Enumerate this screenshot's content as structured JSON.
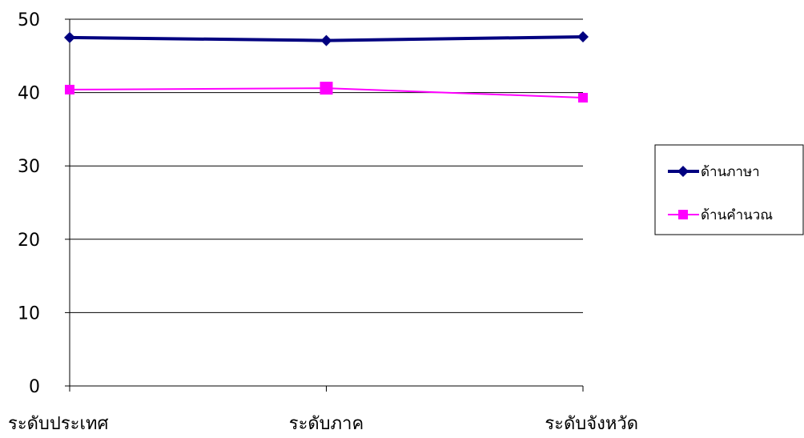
{
  "chart_data": {
    "type": "line",
    "categories": [
      "ระดับประเทศ",
      "ระดับภาค",
      "ระดับจังหวัด"
    ],
    "series": [
      {
        "name": "ด้านภาษา",
        "values": [
          47.5,
          47.1,
          47.6
        ],
        "color": "#000080",
        "marker": "diamond"
      },
      {
        "name": "ด้านคำนวณ",
        "values": [
          40.4,
          40.6,
          39.3
        ],
        "color": "#ff00ff",
        "marker": "square"
      }
    ],
    "ylim": [
      0,
      50
    ],
    "yticks": [
      0,
      10,
      20,
      30,
      40,
      50
    ],
    "grid": true,
    "legend": "right"
  }
}
